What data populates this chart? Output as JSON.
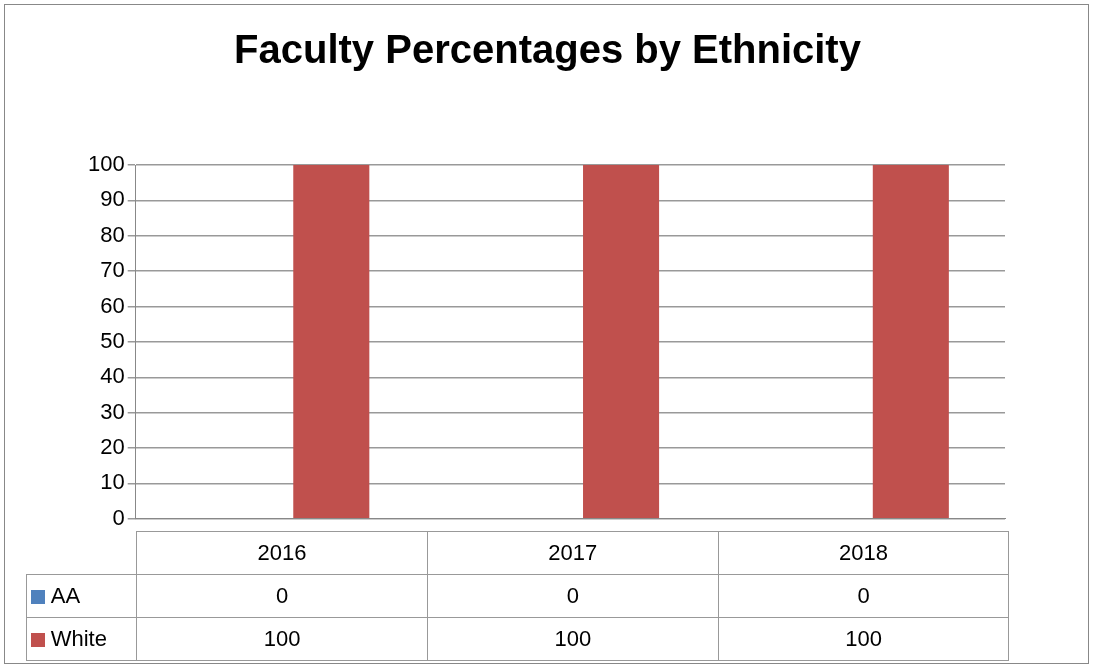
{
  "chart_data": {
    "type": "bar",
    "title": "Faculty Percentages by Ethnicity",
    "categories": [
      "2016",
      "2017",
      "2018"
    ],
    "series": [
      {
        "name": "AA",
        "color": "#4f81bd",
        "values": [
          0,
          0,
          0
        ]
      },
      {
        "name": "White",
        "color": "#c0504d",
        "values": [
          100,
          100,
          100
        ]
      }
    ],
    "ylim": [
      0,
      100
    ],
    "yticks": [
      0,
      10,
      20,
      30,
      40,
      50,
      60,
      70,
      80,
      90,
      100
    ],
    "grid": "y",
    "legend": "bottom",
    "data_labels": true
  }
}
